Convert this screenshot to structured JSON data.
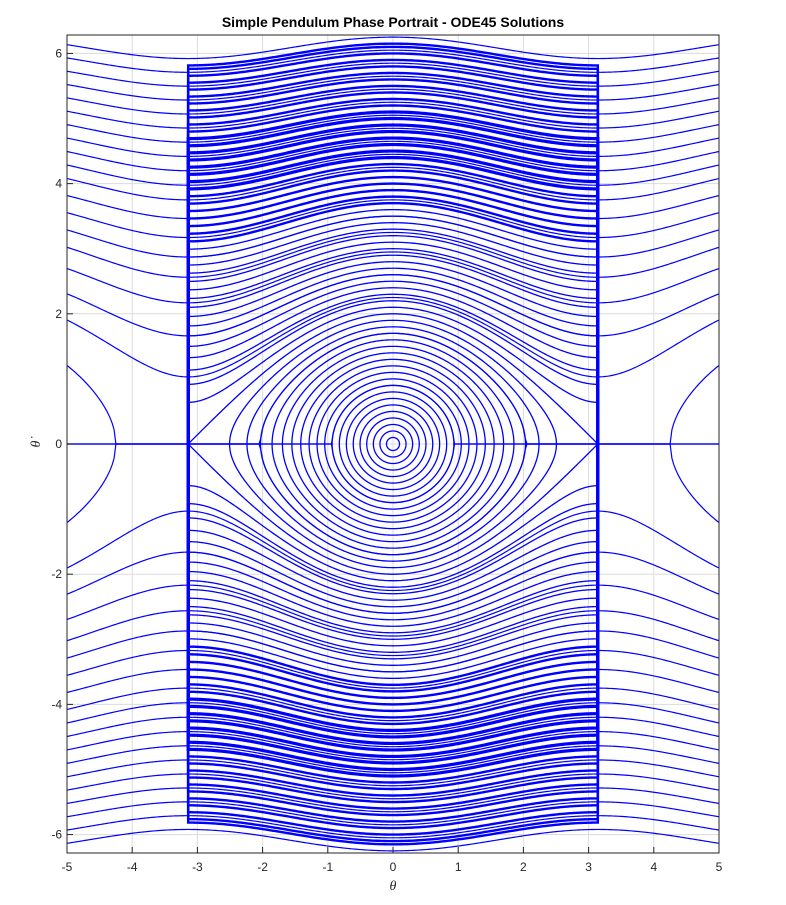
{
  "chart_data": {
    "type": "line",
    "title": "Simple Pendulum Phase Portrait - ODE45 Solutions",
    "xlabel": "θ",
    "ylabel": "θ̇",
    "xlim": [
      -5,
      5
    ],
    "ylim": [
      -6.283,
      6.283
    ],
    "xticks": [
      -5,
      -4,
      -3,
      -2,
      -1,
      0,
      1,
      2,
      3,
      4,
      5
    ],
    "yticks": [
      -6,
      -4,
      -2,
      0,
      2,
      4,
      6
    ],
    "grid": true,
    "series_color": "#0000ff",
    "librating_orbits": {
      "max_velocity_at_theta_0": [
        0.1,
        0.2,
        0.3,
        0.4,
        0.5,
        0.6,
        0.7,
        0.8,
        0.9,
        1.0,
        1.1,
        1.2,
        1.3,
        1.4,
        1.5,
        1.6,
        1.7,
        1.8,
        1.9,
        2.0,
        2.1,
        2.2,
        2.3,
        2.4,
        2.5,
        2.6,
        2.7,
        2.8,
        2.9,
        3.0,
        3.1,
        3.2,
        3.3,
        3.4,
        3.5,
        3.6,
        3.7,
        3.8,
        3.9,
        4.0,
        4.1,
        4.2,
        4.3,
        4.4,
        4.5,
        4.6,
        4.7,
        4.8,
        4.9,
        5.0,
        5.1,
        5.2,
        5.3,
        5.4,
        5.5,
        5.6,
        5.7,
        5.8,
        5.9,
        6.0,
        6.1,
        6.15
      ]
    },
    "rotating_orbits": {
      "min_velocity_at_theta_pi": [
        0.9,
        1.7,
        2.25,
        2.6,
        2.95,
        3.25,
        3.5,
        3.75,
        4.0,
        4.25,
        4.45,
        4.65,
        4.85,
        5.05,
        5.25,
        5.45,
        5.65,
        5.85,
        6.05,
        6.25
      ]
    }
  }
}
